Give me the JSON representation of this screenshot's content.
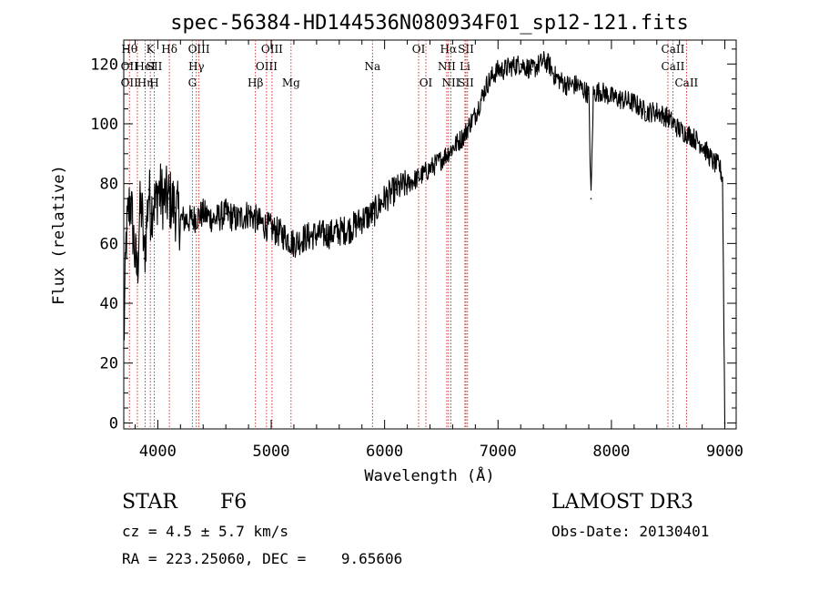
{
  "chart_data": {
    "type": "line",
    "title": "spec-56384-HD144536N080934F01_sp12-121.fits",
    "xlabel": "Wavelength (Å)",
    "ylabel": "Flux (relative)",
    "xlim": [
      3700,
      9100
    ],
    "ylim": [
      -2,
      128
    ],
    "x_ticks": [
      4000,
      5000,
      6000,
      7000,
      8000,
      9000
    ],
    "y_ticks": [
      0,
      20,
      40,
      60,
      80,
      100,
      120
    ],
    "line_color": "#000000",
    "marker_color": "#cc2222",
    "series": [
      {
        "x": [
          3700,
          3720,
          3740,
          3760,
          3780,
          3800,
          3820,
          3840,
          3860,
          3880,
          3900,
          3920,
          3940,
          3960,
          3980,
          4000,
          4050,
          4100,
          4150,
          4200,
          4300,
          4400,
          4500,
          4600,
          4700,
          4800,
          4900,
          5000,
          5100,
          5200,
          5300,
          5400,
          5500,
          5600,
          5700,
          5800,
          5900,
          6000,
          6100,
          6200,
          6300,
          6400,
          6500,
          6600,
          6700,
          6750,
          6800,
          6850,
          6900,
          6950,
          7000,
          7050,
          7100,
          7200,
          7300,
          7400,
          7450,
          7500,
          7600,
          7700,
          7800,
          7820,
          7840,
          7900,
          8000,
          8100,
          8200,
          8300,
          8400,
          8500,
          8600,
          8700,
          8800,
          8850,
          8900,
          8950,
          8980,
          9000
        ],
        "y": [
          25,
          60,
          70,
          75,
          65,
          55,
          50,
          70,
          72,
          55,
          65,
          78,
          70,
          75,
          72,
          78,
          75,
          75,
          72,
          68,
          68,
          70,
          68,
          70,
          68,
          70,
          67,
          65,
          63,
          60,
          62,
          63,
          63,
          64,
          65,
          68,
          70,
          75,
          78,
          80,
          82,
          85,
          88,
          92,
          96,
          100,
          103,
          108,
          113,
          116,
          118,
          118,
          119,
          120,
          118,
          121,
          120,
          116,
          113,
          113,
          110,
          75,
          110,
          111,
          109,
          108,
          107,
          104,
          104,
          102,
          98,
          96,
          93,
          90,
          87,
          86,
          82,
          0
        ]
      }
    ],
    "line_markers": [
      {
        "x": 3750,
        "labels": [
          "Hθ",
          "OII",
          "OII"
        ]
      },
      {
        "x": 3820,
        "labels": [
          "",
          "",
          ""
        ]
      },
      {
        "x": 3889,
        "labels": [
          "",
          "HeI",
          "Hη"
        ]
      },
      {
        "x": 3934,
        "labels": [
          "K",
          "",
          ""
        ]
      },
      {
        "x": 3969,
        "labels": [
          "",
          "SII",
          "H"
        ]
      },
      {
        "x": 4102,
        "labels": [
          "Hδ",
          "",
          ""
        ]
      },
      {
        "x": 4305,
        "labels": [
          "",
          "",
          "G"
        ]
      },
      {
        "x": 4340,
        "labels": [
          "",
          "Hγ",
          ""
        ]
      },
      {
        "x": 4363,
        "labels": [
          "OIII",
          "",
          ""
        ]
      },
      {
        "x": 4861,
        "labels": [
          "",
          "",
          "Hβ"
        ]
      },
      {
        "x": 4959,
        "labels": [
          "",
          "OIII",
          ""
        ]
      },
      {
        "x": 5007,
        "labels": [
          "OIII",
          "",
          ""
        ]
      },
      {
        "x": 5175,
        "labels": [
          "",
          "",
          "Mg"
        ]
      },
      {
        "x": 5893,
        "labels": [
          "",
          "Na",
          ""
        ]
      },
      {
        "x": 6300,
        "labels": [
          "OI",
          "",
          ""
        ]
      },
      {
        "x": 6364,
        "labels": [
          "",
          "",
          "OI"
        ]
      },
      {
        "x": 6548,
        "labels": [
          "",
          "NII",
          ""
        ]
      },
      {
        "x": 6563,
        "labels": [
          "Hα",
          "",
          ""
        ]
      },
      {
        "x": 6584,
        "labels": [
          "",
          "",
          "NII"
        ]
      },
      {
        "x": 6708,
        "labels": [
          "",
          "Li",
          ""
        ]
      },
      {
        "x": 6717,
        "labels": [
          "SII",
          "",
          "SII"
        ]
      },
      {
        "x": 6731,
        "labels": [
          "",
          "",
          ""
        ]
      },
      {
        "x": 8498,
        "labels": [
          "",
          "",
          ""
        ]
      },
      {
        "x": 8542,
        "labels": [
          "CaII",
          "CaII",
          ""
        ]
      },
      {
        "x": 8662,
        "labels": [
          "",
          "",
          "CaII"
        ]
      }
    ]
  },
  "info": {
    "object_class": "STAR",
    "subclass": "F6",
    "redshift_line": "cz = 4.5 ± 5.7 km/s",
    "coords_line": "RA = 223.25060, DEC =    9.65606",
    "survey": "LAMOST DR3",
    "obs_date": "Obs-Date: 20130401"
  }
}
